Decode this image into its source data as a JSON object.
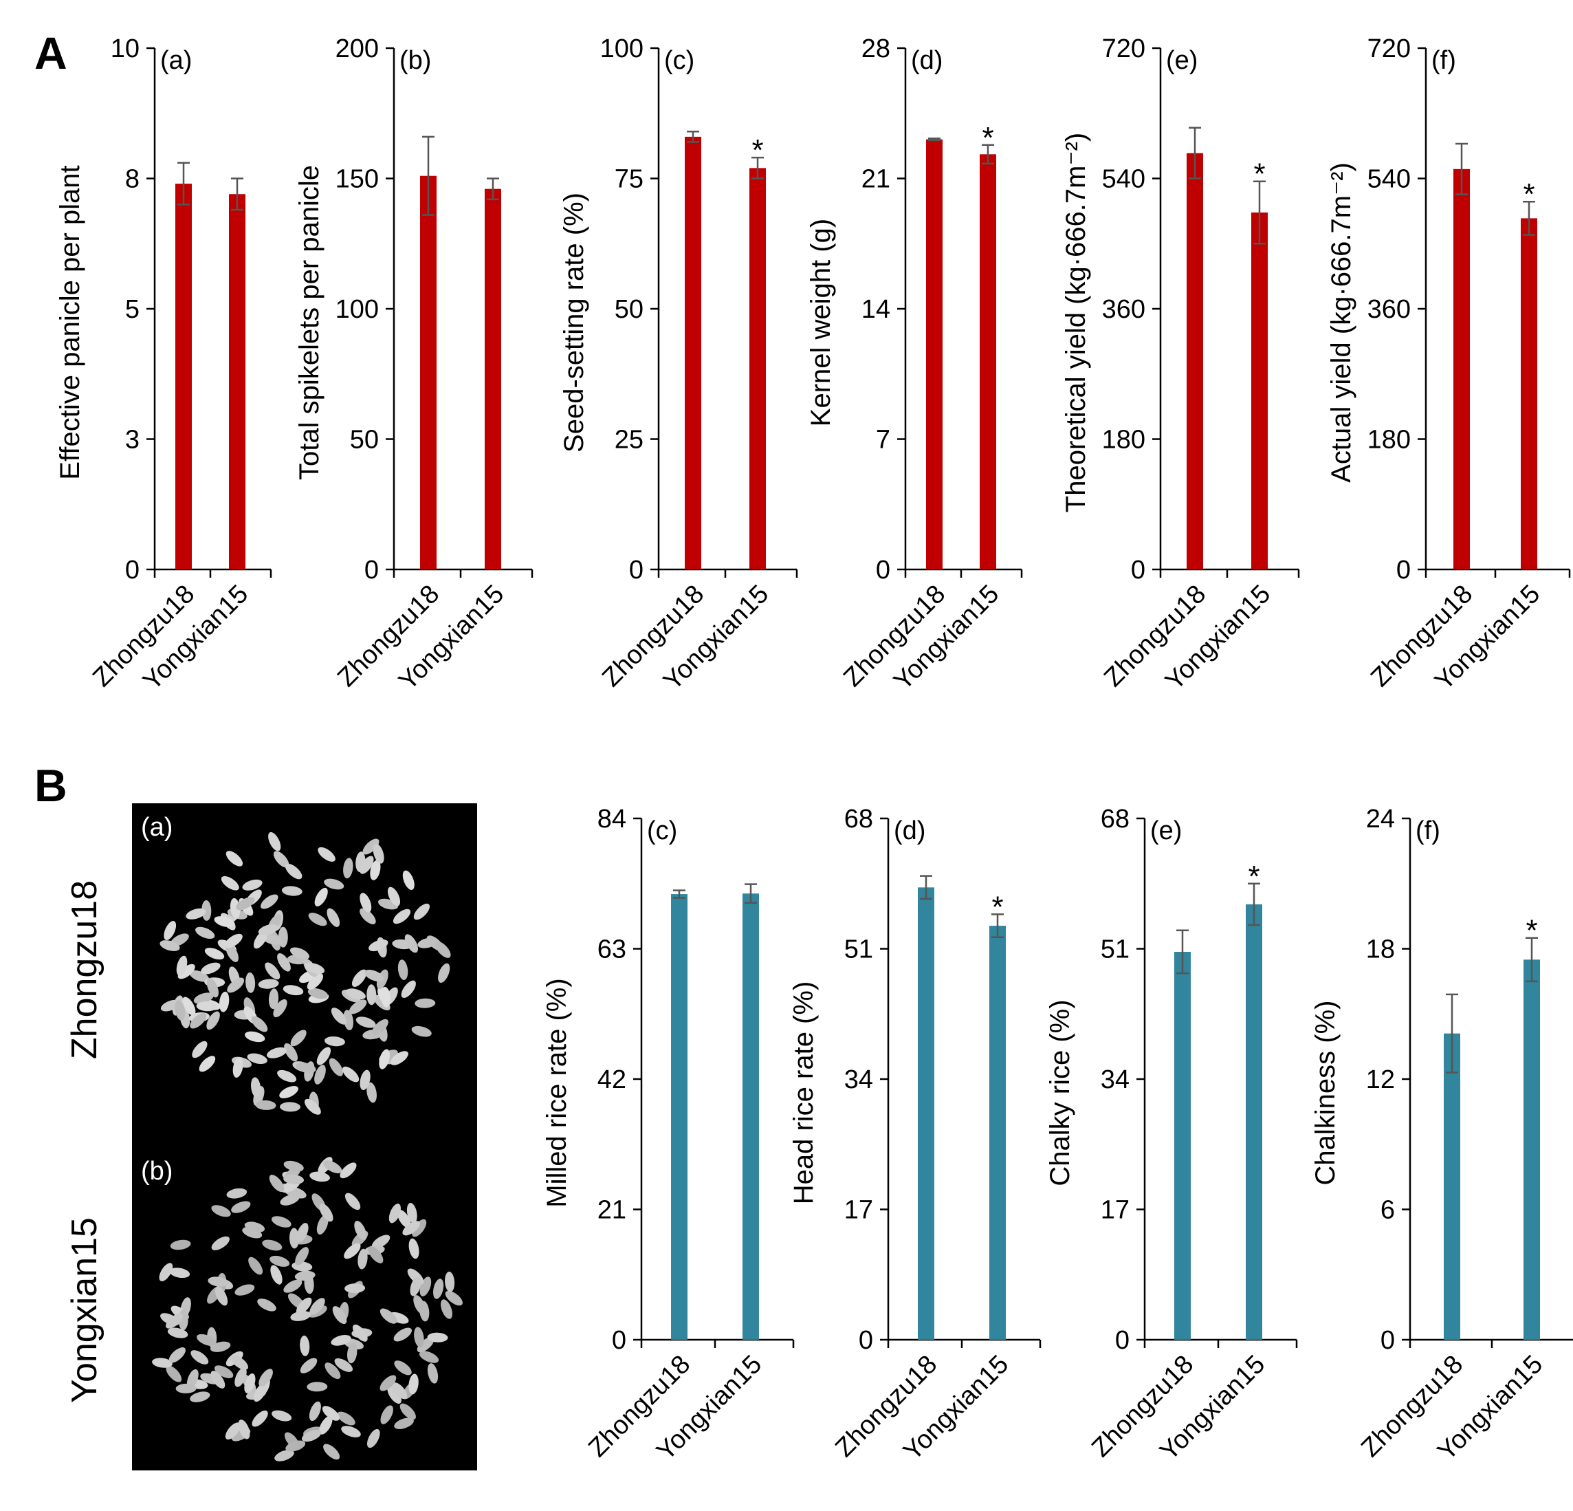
{
  "panels": {
    "A": "A",
    "B": "B"
  },
  "colors": {
    "panel_A_bars": "#c00000",
    "panel_B_bars": "#31859c"
  },
  "photos": [
    {
      "sub_label": "(a)",
      "name": "Zhongzu18"
    },
    {
      "sub_label": "(b)",
      "name": "Yongxian15"
    }
  ],
  "chart_data": [
    {
      "type": "bar",
      "panel": "A",
      "sub_label": "(a)",
      "ylabel": "Effective panicle per plant",
      "ylim": [
        0,
        10
      ],
      "yticks": [
        0,
        3,
        5,
        8,
        10
      ],
      "ytick_values": [
        0,
        2.5,
        5,
        7.5,
        10
      ],
      "categories": [
        "Zhongzu18",
        "Yongxian15"
      ],
      "values": [
        7.4,
        7.2
      ],
      "errors": [
        0.4,
        0.3
      ],
      "significant": [
        false,
        false
      ]
    },
    {
      "type": "bar",
      "panel": "A",
      "sub_label": "(b)",
      "ylabel": "Total spikelets per panicle",
      "ylim": [
        0,
        200
      ],
      "yticks": [
        0,
        50,
        100,
        150,
        200
      ],
      "ytick_values": [
        0,
        50,
        100,
        150,
        200
      ],
      "categories": [
        "Zhongzu18",
        "Yongxian15"
      ],
      "values": [
        151,
        146
      ],
      "errors": [
        15,
        4
      ],
      "significant": [
        false,
        false
      ]
    },
    {
      "type": "bar",
      "panel": "A",
      "sub_label": "(c)",
      "ylabel": "Seed-setting rate (%)",
      "ylim": [
        0,
        100
      ],
      "yticks": [
        0,
        25,
        50,
        75,
        100
      ],
      "ytick_values": [
        0,
        25,
        50,
        75,
        100
      ],
      "categories": [
        "Zhongzu18",
        "Yongxian15"
      ],
      "values": [
        83,
        77
      ],
      "errors": [
        1,
        2
      ],
      "significant": [
        false,
        true
      ]
    },
    {
      "type": "bar",
      "panel": "A",
      "sub_label": "(d)",
      "ylabel": "Kernel weight (g)",
      "ylim": [
        0,
        28
      ],
      "yticks": [
        0,
        7,
        14,
        21,
        28
      ],
      "ytick_values": [
        0,
        7,
        14,
        21,
        28
      ],
      "categories": [
        "Zhongzu18",
        "Yongxian15"
      ],
      "values": [
        23.1,
        22.3
      ],
      "errors": [
        0.05,
        0.5
      ],
      "significant": [
        false,
        true
      ]
    },
    {
      "type": "bar",
      "panel": "A",
      "sub_label": "(e)",
      "ylabel": "Theoretical yield (kg·666.7m⁻²)",
      "ylim": [
        0,
        720
      ],
      "yticks": [
        0,
        180,
        360,
        540,
        720
      ],
      "ytick_values": [
        0,
        180,
        360,
        540,
        720
      ],
      "categories": [
        "Zhongzu18",
        "Yongxian15"
      ],
      "values": [
        575,
        493
      ],
      "errors": [
        35,
        43
      ],
      "significant": [
        false,
        true
      ]
    },
    {
      "type": "bar",
      "panel": "A",
      "sub_label": "(f)",
      "ylabel": "Actual yield (kg·666.7m⁻²)",
      "ylim": [
        0,
        720
      ],
      "yticks": [
        0,
        180,
        360,
        540,
        720
      ],
      "ytick_values": [
        0,
        180,
        360,
        540,
        720
      ],
      "categories": [
        "Zhongzu18",
        "Yongxian15"
      ],
      "values": [
        553,
        485
      ],
      "errors": [
        35,
        23
      ],
      "significant": [
        false,
        true
      ]
    },
    {
      "type": "bar",
      "panel": "B",
      "sub_label": "(c)",
      "ylabel": "Milled rice rate (%)",
      "ylim": [
        0,
        84
      ],
      "yticks": [
        0,
        21,
        42,
        63,
        84
      ],
      "ytick_values": [
        0,
        21,
        42,
        63,
        84
      ],
      "categories": [
        "Zhongzu18",
        "Yongxian15"
      ],
      "values": [
        71.8,
        71.9
      ],
      "errors": [
        0.6,
        1.5
      ],
      "significant": [
        false,
        false
      ]
    },
    {
      "type": "bar",
      "panel": "B",
      "sub_label": "(d)",
      "ylabel": "Head rice rate (%)",
      "ylim": [
        0,
        68
      ],
      "yticks": [
        0,
        17,
        34,
        51,
        68
      ],
      "ytick_values": [
        0,
        17,
        34,
        51,
        68
      ],
      "categories": [
        "Zhongzu18",
        "Yongxian15"
      ],
      "values": [
        59,
        54
      ],
      "errors": [
        1.5,
        1.5
      ],
      "significant": [
        false,
        true
      ]
    },
    {
      "type": "bar",
      "panel": "B",
      "sub_label": "(e)",
      "ylabel": "Chalky rice (%)",
      "ylim": [
        0,
        68
      ],
      "yticks": [
        0,
        17,
        34,
        51,
        68
      ],
      "ytick_values": [
        0,
        17,
        34,
        51,
        68
      ],
      "categories": [
        "Zhongzu18",
        "Yongxian15"
      ],
      "values": [
        50.6,
        56.8
      ],
      "errors": [
        2.8,
        2.7
      ],
      "significant": [
        false,
        true
      ]
    },
    {
      "type": "bar",
      "panel": "B",
      "sub_label": "(f)",
      "ylabel": "Chalkiness (%)",
      "ylim": [
        0,
        24
      ],
      "yticks": [
        0,
        6,
        12,
        18,
        24
      ],
      "ytick_values": [
        0,
        6,
        12,
        18,
        24
      ],
      "categories": [
        "Zhongzu18",
        "Yongxian15"
      ],
      "values": [
        14.1,
        17.5
      ],
      "errors": [
        1.8,
        1.0
      ],
      "significant": [
        false,
        true
      ]
    }
  ]
}
